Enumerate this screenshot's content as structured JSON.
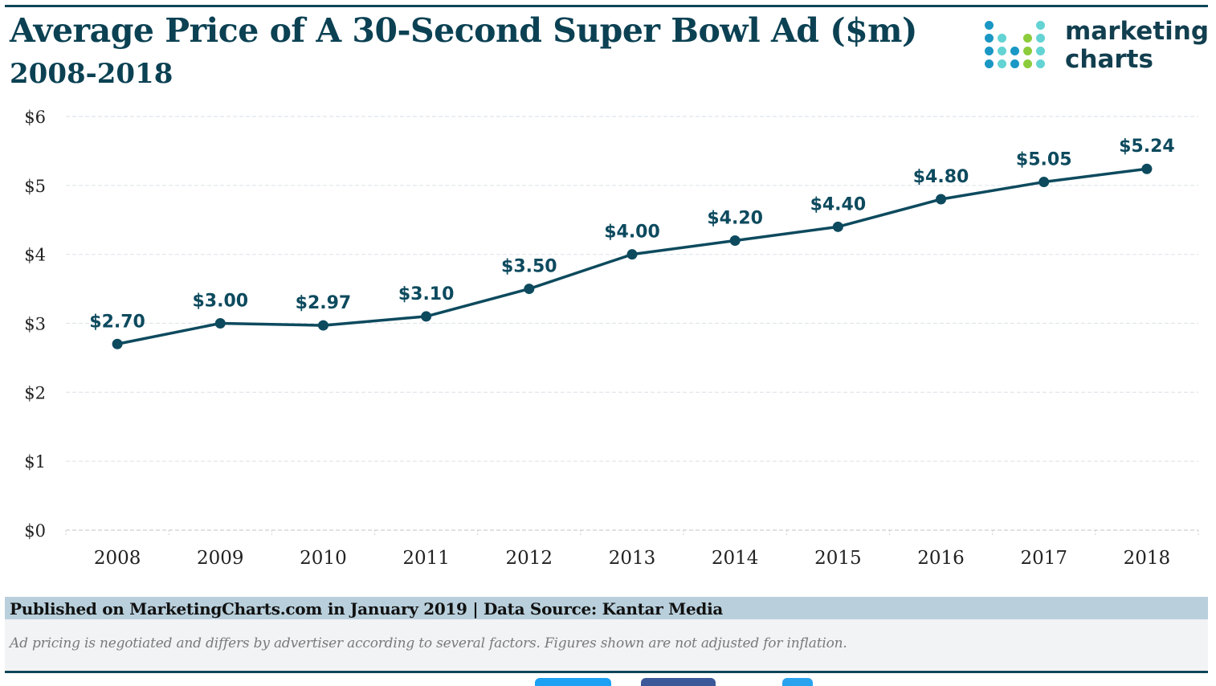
{
  "header": {
    "title": "Average Price of A 30-Second Super Bowl Ad ($m)",
    "subtitle": "2008-2018"
  },
  "logo": {
    "line1": "marketing",
    "line2": "charts",
    "colors": {
      "blue": "#1a97c4",
      "teal": "#63d3d3",
      "green": "#8ccc3c",
      "text": "#123f4f"
    }
  },
  "footer": {
    "source": "Published on MarketingCharts.com in January 2019 | Data Source: Kantar Media",
    "note": "Ad pricing is negotiated and differs by advertiser according to several factors. Figures shown are not adjusted for inflation."
  },
  "share_buttons": [
    {
      "name": "twitter-share",
      "color": "#1da1f2"
    },
    {
      "name": "facebook-share",
      "color": "#3b5998"
    },
    {
      "name": "share-other",
      "color": "#2aa3ef"
    }
  ],
  "chart_data": {
    "type": "line",
    "title": "Average Price of A 30-Second Super Bowl Ad ($m)",
    "subtitle": "2008-2018",
    "xlabel": "",
    "ylabel": "",
    "categories": [
      "2008",
      "2009",
      "2010",
      "2011",
      "2012",
      "2013",
      "2014",
      "2015",
      "2016",
      "2017",
      "2018"
    ],
    "series": [
      {
        "name": "Average Price ($m)",
        "values": [
          2.7,
          3.0,
          2.97,
          3.1,
          3.5,
          4.0,
          4.2,
          4.4,
          4.8,
          5.05,
          5.24
        ],
        "labels": [
          "$2.70",
          "$3.00",
          "$2.97",
          "$3.10",
          "$3.50",
          "$4.00",
          "$4.20",
          "$4.40",
          "$4.80",
          "$5.05",
          "$5.24"
        ],
        "color": "#0d4a5e"
      }
    ],
    "ylim": [
      0,
      6
    ],
    "yticks": [
      0,
      1,
      2,
      3,
      4,
      5,
      6
    ],
    "ytick_labels": [
      "$0",
      "$1",
      "$2",
      "$3",
      "$4",
      "$5",
      "$6"
    ],
    "grid": true,
    "legend": "none"
  }
}
